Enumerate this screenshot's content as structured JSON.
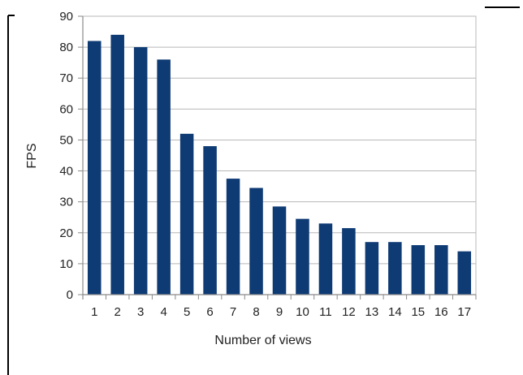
{
  "chart_data": {
    "type": "bar",
    "categories": [
      "1",
      "2",
      "3",
      "4",
      "5",
      "6",
      "7",
      "8",
      "9",
      "10",
      "11",
      "12",
      "13",
      "14",
      "15",
      "16",
      "17"
    ],
    "series": [
      {
        "values": [
          82,
          84,
          80,
          76,
          52,
          48,
          37.5,
          34.5,
          28.5,
          24.5,
          23,
          21.5,
          17,
          17,
          16,
          16,
          14
        ]
      }
    ],
    "xlabel": "Number of views",
    "ylabel": "FPS",
    "ylim": [
      0,
      90
    ],
    "yticks": [
      0,
      10,
      20,
      30,
      40,
      50,
      60,
      70,
      80,
      90
    ],
    "grid": true,
    "legend": "none",
    "bar_color": "#0e3b74",
    "grid_color": "#b8b8b8",
    "axis_color": "#8a8a8a"
  }
}
